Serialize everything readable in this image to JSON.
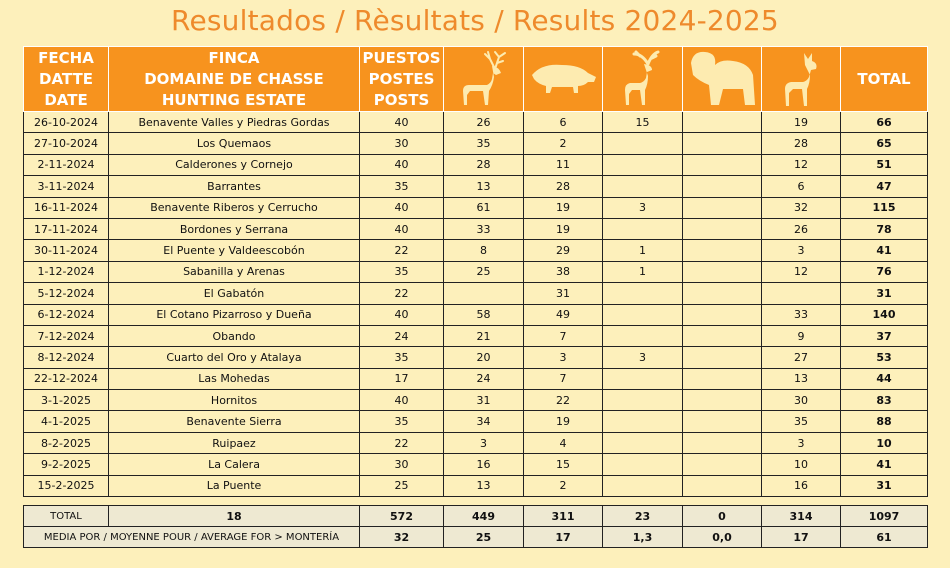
{
  "title": "Resultados / Rèsultats / Results 2024-2025",
  "header": {
    "date_lines": [
      "FECHA",
      "DATTE",
      "DATE"
    ],
    "estate_lines": [
      "FINCA",
      "DOMAINE DE CHASSE",
      "HUNTING ESTATE"
    ],
    "posts_lines": [
      "PUESTOS",
      "POSTES",
      "POSTS"
    ],
    "species_icons": [
      "red-deer-stag-icon",
      "wild-boar-icon",
      "fallow-deer-icon",
      "mouflon-ram-icon",
      "deer-hind-icon"
    ],
    "total_label": "TOTAL",
    "icon_color": "#fdebb0"
  },
  "rows": [
    {
      "date": "26-10-2024",
      "estate": "Benavente Valles y Piedras Gordas",
      "posts": "40",
      "stag": "26",
      "boar": "6",
      "fallow": "15",
      "mouflon": "",
      "hind": "19",
      "total": "66"
    },
    {
      "date": "27-10-2024",
      "estate": "Los Quemaos",
      "posts": "30",
      "stag": "35",
      "boar": "2",
      "fallow": "",
      "mouflon": "",
      "hind": "28",
      "total": "65"
    },
    {
      "date": "2-11-2024",
      "estate": "Calderones y Cornejo",
      "posts": "40",
      "stag": "28",
      "boar": "11",
      "fallow": "",
      "mouflon": "",
      "hind": "12",
      "total": "51"
    },
    {
      "date": "3-11-2024",
      "estate": "Barrantes",
      "posts": "35",
      "stag": "13",
      "boar": "28",
      "fallow": "",
      "mouflon": "",
      "hind": "6",
      "total": "47"
    },
    {
      "date": "16-11-2024",
      "estate": "Benavente Riberos y Cerrucho",
      "posts": "40",
      "stag": "61",
      "boar": "19",
      "fallow": "3",
      "mouflon": "",
      "hind": "32",
      "total": "115"
    },
    {
      "date": "17-11-2024",
      "estate": "Bordones y Serrana",
      "posts": "40",
      "stag": "33",
      "boar": "19",
      "fallow": "",
      "mouflon": "",
      "hind": "26",
      "total": "78"
    },
    {
      "date": "30-11-2024",
      "estate": "El Puente y Valdeescobón",
      "posts": "22",
      "stag": "8",
      "boar": "29",
      "fallow": "1",
      "mouflon": "",
      "hind": "3",
      "total": "41"
    },
    {
      "date": "1-12-2024",
      "estate": "Sabanilla y Arenas",
      "posts": "35",
      "stag": "25",
      "boar": "38",
      "fallow": "1",
      "mouflon": "",
      "hind": "12",
      "total": "76"
    },
    {
      "date": "5-12-2024",
      "estate": "El Gabatón",
      "posts": "22",
      "stag": "",
      "boar": "31",
      "fallow": "",
      "mouflon": "",
      "hind": "",
      "total": "31"
    },
    {
      "date": "6-12-2024",
      "estate": "El Cotano Pizarroso y  Dueña",
      "posts": "40",
      "stag": "58",
      "boar": "49",
      "fallow": "",
      "mouflon": "",
      "hind": "33",
      "total": "140"
    },
    {
      "date": "7-12-2024",
      "estate": "Obando",
      "posts": "24",
      "stag": "21",
      "boar": "7",
      "fallow": "",
      "mouflon": "",
      "hind": "9",
      "total": "37"
    },
    {
      "date": "8-12-2024",
      "estate": "Cuarto del Oro y Atalaya",
      "posts": "35",
      "stag": "20",
      "boar": "3",
      "fallow": "3",
      "mouflon": "",
      "hind": "27",
      "total": "53"
    },
    {
      "date": "22-12-2024",
      "estate": "Las Mohedas",
      "posts": "17",
      "stag": "24",
      "boar": "7",
      "fallow": "",
      "mouflon": "",
      "hind": "13",
      "total": "44"
    },
    {
      "date": "3-1-2025",
      "estate": "Hornitos",
      "posts": "40",
      "stag": "31",
      "boar": "22",
      "fallow": "",
      "mouflon": "",
      "hind": "30",
      "total": "83"
    },
    {
      "date": "4-1-2025",
      "estate": "Benavente Sierra",
      "posts": "35",
      "stag": "34",
      "boar": "19",
      "fallow": "",
      "mouflon": "",
      "hind": "35",
      "total": "88"
    },
    {
      "date": "8-2-2025",
      "estate": "Ruipaez",
      "posts": "22",
      "stag": "3",
      "boar": "4",
      "fallow": "",
      "mouflon": "",
      "hind": "3",
      "total": "10"
    },
    {
      "date": "9-2-2025",
      "estate": "La Calera",
      "posts": "30",
      "stag": "16",
      "boar": "15",
      "fallow": "",
      "mouflon": "",
      "hind": "10",
      "total": "41"
    },
    {
      "date": "15-2-2025",
      "estate": "La Puente",
      "posts": "25",
      "stag": "13",
      "boar": "2",
      "fallow": "",
      "mouflon": "",
      "hind": "16",
      "total": "31"
    }
  ],
  "totals": {
    "label": "TOTAL",
    "estates": "18",
    "posts": "572",
    "stag": "449",
    "boar": "311",
    "fallow": "23",
    "mouflon": "0",
    "hind": "314",
    "total": "1097"
  },
  "average": {
    "label": "MEDIA POR / MOYENNE POUR / AVERAGE FOR > MONTERÍA",
    "posts": "32",
    "stag": "25",
    "boar": "17",
    "fallow": "1,3",
    "mouflon": "0,0",
    "hind": "17",
    "total": "61"
  }
}
